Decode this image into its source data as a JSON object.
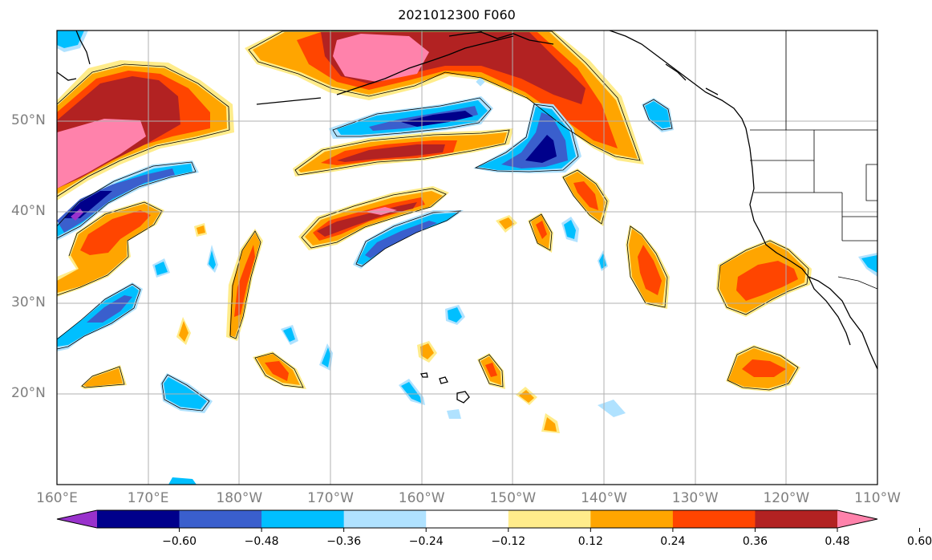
{
  "title": "2021012300 F060",
  "lat_ticks": [
    {
      "value": 50,
      "label": "50°N"
    },
    {
      "value": 40,
      "label": "40°N"
    },
    {
      "value": 30,
      "label": "30°N"
    },
    {
      "value": 20,
      "label": "20°N"
    }
  ],
  "lon_ticks": [
    {
      "value": 160,
      "label": "160°E"
    },
    {
      "value": 170,
      "label": "170°E"
    },
    {
      "value": 180,
      "label": "180°W"
    },
    {
      "value": 190,
      "label": "170°W"
    },
    {
      "value": 200,
      "label": "160°W"
    },
    {
      "value": 210,
      "label": "150°W"
    },
    {
      "value": 220,
      "label": "140°W"
    },
    {
      "value": 230,
      "label": "130°W"
    },
    {
      "value": 240,
      "label": "120°W"
    },
    {
      "value": 250,
      "label": "110°W"
    }
  ],
  "extent": {
    "lon_min": 160,
    "lon_max": 250,
    "lat_min": 10,
    "lat_max": 60
  },
  "colorbar": {
    "colors": [
      "#9932cc",
      "#00008b",
      "#3a5fcd",
      "#00bfff",
      "#b0e2ff",
      "#ffffff",
      "#ffec8b",
      "#ffa500",
      "#ff4500",
      "#b22222",
      "#ff82ab"
    ],
    "labels": [
      "−0.60",
      "−0.48",
      "−0.36",
      "−0.24",
      "−0.12",
      "0.12",
      "0.24",
      "0.36",
      "0.48",
      "0.60"
    ]
  }
}
